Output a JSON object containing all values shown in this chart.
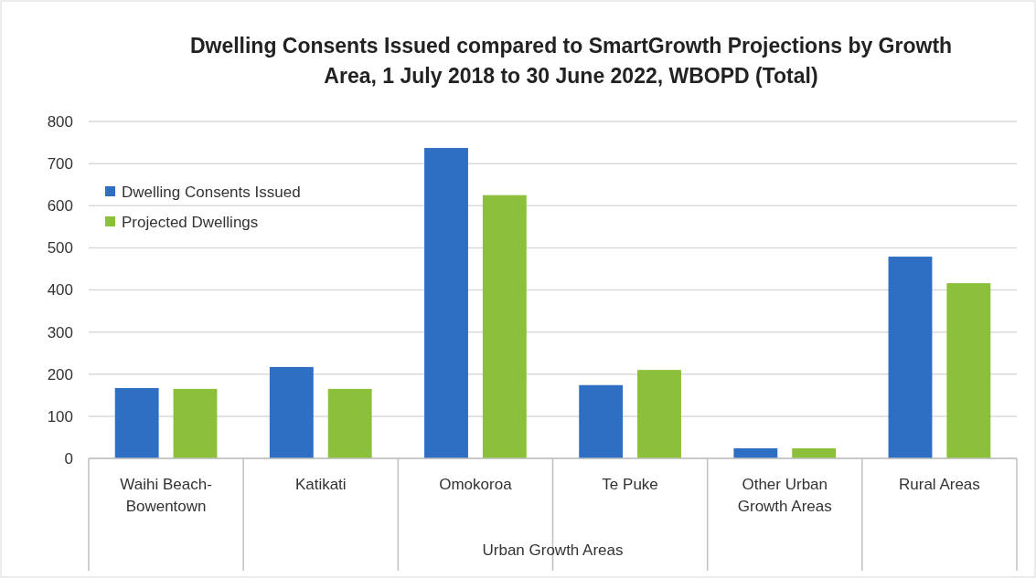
{
  "chart_data": {
    "type": "bar",
    "title": "Dwelling Consents Issued compared to SmartGrowth Projections by Growth Area,  1 July 2018 to  30 June 2022, WBOPD (Total)",
    "xlabel": "Urban Growth Areas",
    "categories": [
      "Waihi Beach-Bowentown",
      "Katikati",
      "Omokoroa",
      "Te Puke",
      "Other Urban Growth Areas",
      "Rural Areas"
    ],
    "series": [
      {
        "name": "Dwelling Consents Issued",
        "color": "#2e6fc4",
        "values": [
          167,
          217,
          737,
          174,
          24,
          479
        ]
      },
      {
        "name": "Projected Dwellings",
        "color": "#8cbf3a",
        "values": [
          165,
          165,
          625,
          210,
          24,
          416
        ]
      }
    ],
    "ylim": [
      0,
      800
    ],
    "yticks": [
      0,
      100,
      200,
      300,
      400,
      500,
      600,
      700,
      800
    ],
    "grid": "y",
    "legend": "top left"
  }
}
